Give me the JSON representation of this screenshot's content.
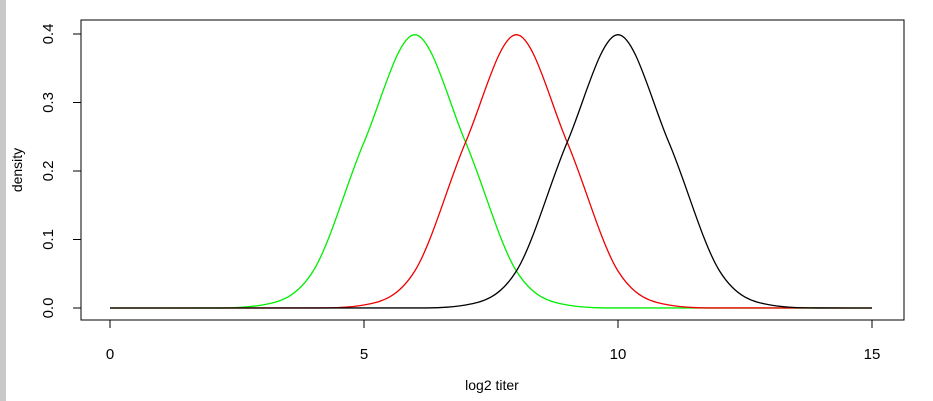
{
  "chart_data": {
    "type": "line",
    "title": "",
    "xlabel": "log2 titer",
    "ylabel": "density",
    "xlim": [
      0,
      15
    ],
    "ylim": [
      0,
      0.4
    ],
    "xticks": [
      0,
      5,
      10,
      15
    ],
    "xtick_labels": [
      "0",
      "5",
      "10",
      "15"
    ],
    "yticks": [
      0,
      0.1,
      0.2,
      0.3,
      0.4
    ],
    "ytick_labels": [
      "0.0",
      "0.1",
      "0.2",
      "0.3",
      "0.4"
    ],
    "grid": false,
    "legend": "none",
    "series": [
      {
        "color": "#00ee00",
        "values": [
          {
            "x": 0,
            "y": 0.0
          },
          {
            "x": 2,
            "y": 0.0001
          },
          {
            "x": 3,
            "y": 0.0044
          },
          {
            "x": 4,
            "y": 0.054
          },
          {
            "x": 5,
            "y": 0.242
          },
          {
            "x": 6,
            "y": 0.399
          },
          {
            "x": 7,
            "y": 0.242
          },
          {
            "x": 8,
            "y": 0.054
          },
          {
            "x": 9,
            "y": 0.0044
          },
          {
            "x": 10,
            "y": 0.0001
          },
          {
            "x": 15,
            "y": 0.0
          }
        ]
      },
      {
        "color": "#ee0000",
        "values": [
          {
            "x": 0,
            "y": 0.0
          },
          {
            "x": 4,
            "y": 0.0001
          },
          {
            "x": 5,
            "y": 0.0044
          },
          {
            "x": 6,
            "y": 0.054
          },
          {
            "x": 7,
            "y": 0.242
          },
          {
            "x": 8,
            "y": 0.399
          },
          {
            "x": 9,
            "y": 0.242
          },
          {
            "x": 10,
            "y": 0.054
          },
          {
            "x": 11,
            "y": 0.0044
          },
          {
            "x": 12,
            "y": 0.0001
          },
          {
            "x": 15,
            "y": 0.0
          }
        ]
      },
      {
        "color": "#000000",
        "values": [
          {
            "x": 0,
            "y": 0.0
          },
          {
            "x": 6,
            "y": 0.0001
          },
          {
            "x": 7,
            "y": 0.0044
          },
          {
            "x": 8,
            "y": 0.054
          },
          {
            "x": 9,
            "y": 0.242
          },
          {
            "x": 10,
            "y": 0.399
          },
          {
            "x": 11,
            "y": 0.242
          },
          {
            "x": 12,
            "y": 0.054
          },
          {
            "x": 13,
            "y": 0.0044
          },
          {
            "x": 14,
            "y": 0.0001
          },
          {
            "x": 15,
            "y": 0.0
          }
        ]
      }
    ]
  }
}
